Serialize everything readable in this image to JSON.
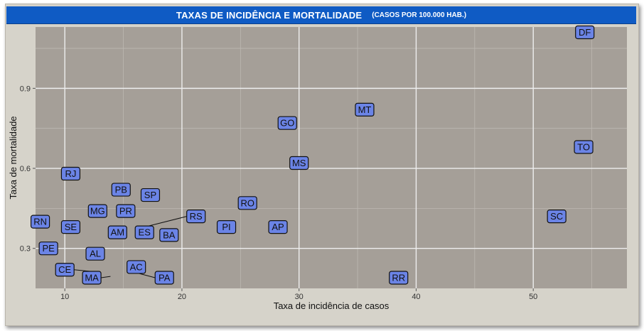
{
  "header": {
    "title": "TAXAS DE INCIDÊNCIA E MORTALIDADE",
    "subtitle": "(CASOS POR 100.000 HAB.)",
    "bg_color": "#0f5bc4"
  },
  "chart_data": {
    "type": "scatter",
    "xlabel": "Taxa de incidência de casos",
    "ylabel": "Taxa de mortalidade",
    "xlim": [
      7.5,
      58
    ],
    "ylim": [
      0.15,
      1.13
    ],
    "x_ticks": [
      10,
      20,
      30,
      40,
      50
    ],
    "y_ticks": [
      0.3,
      0.6,
      0.9
    ],
    "y_tick_labels": [
      "0.3",
      "0.6",
      "0.9"
    ],
    "grid": true,
    "panel_color": "#a59f98",
    "label_fill": "#6b84e6",
    "points": [
      {
        "label": "DF",
        "x": 54.4,
        "y": 1.11
      },
      {
        "label": "MT",
        "x": 35.6,
        "y": 0.82
      },
      {
        "label": "GO",
        "x": 29.0,
        "y": 0.77
      },
      {
        "label": "TO",
        "x": 54.3,
        "y": 0.68
      },
      {
        "label": "MS",
        "x": 30.0,
        "y": 0.62
      },
      {
        "label": "RJ",
        "x": 10.5,
        "y": 0.58
      },
      {
        "label": "PB",
        "x": 14.8,
        "y": 0.52
      },
      {
        "label": "SP",
        "x": 17.3,
        "y": 0.5
      },
      {
        "label": "RO",
        "x": 25.6,
        "y": 0.47
      },
      {
        "label": "MG",
        "x": 12.8,
        "y": 0.44
      },
      {
        "label": "PR",
        "x": 15.2,
        "y": 0.44
      },
      {
        "label": "RS",
        "x": 16.8,
        "y": 0.38,
        "lx": 21.2,
        "ly": 0.42
      },
      {
        "label": "SC",
        "x": 52.0,
        "y": 0.42
      },
      {
        "label": "RN",
        "x": 7.9,
        "y": 0.4
      },
      {
        "label": "SE",
        "x": 10.5,
        "y": 0.38
      },
      {
        "label": "PI",
        "x": 23.8,
        "y": 0.38
      },
      {
        "label": "AP",
        "x": 28.2,
        "y": 0.38
      },
      {
        "label": "AM",
        "x": 14.5,
        "y": 0.36
      },
      {
        "label": "ES",
        "x": 16.8,
        "y": 0.36
      },
      {
        "label": "BA",
        "x": 18.9,
        "y": 0.35
      },
      {
        "label": "PE",
        "x": 8.6,
        "y": 0.3
      },
      {
        "label": "AL",
        "x": 12.6,
        "y": 0.28
      },
      {
        "label": "AC",
        "x": 16.1,
        "y": 0.23
      },
      {
        "label": "CE",
        "x": 13.0,
        "y": 0.21,
        "lx": 10.0,
        "ly": 0.22
      },
      {
        "label": "MA",
        "x": 13.9,
        "y": 0.195,
        "lx": 12.3,
        "ly": 0.19
      },
      {
        "label": "PA",
        "x": 16.0,
        "y": 0.21,
        "lx": 18.5,
        "ly": 0.19
      },
      {
        "label": "RR",
        "x": 38.5,
        "y": 0.19
      }
    ]
  }
}
